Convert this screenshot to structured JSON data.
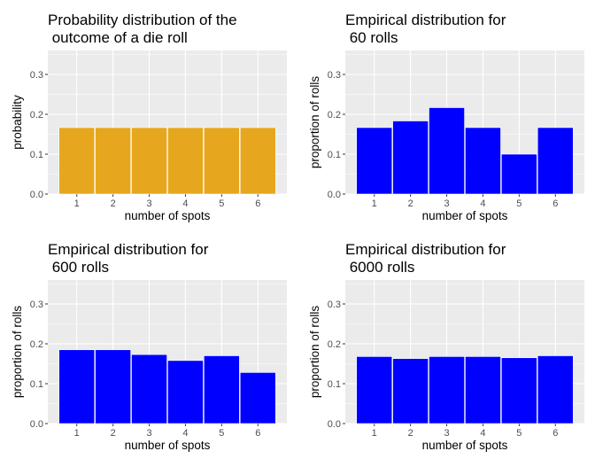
{
  "chart_data": [
    {
      "type": "bar",
      "title_lines": [
        "Probability distribution of the",
        " outcome of a die roll"
      ],
      "xlabel": "number of spots",
      "ylabel": "probability",
      "categories": [
        "1",
        "2",
        "3",
        "4",
        "5",
        "6"
      ],
      "values": [
        0.1667,
        0.1667,
        0.1667,
        0.1667,
        0.1667,
        0.1667
      ],
      "ylim": [
        0,
        0.36
      ],
      "yticks": [
        "0.0",
        "0.1",
        "0.2",
        "0.3"
      ],
      "bar_color": "#E6A71E",
      "panel_background": "#EBEBEB",
      "grid": true
    },
    {
      "type": "bar",
      "title_lines": [
        "Empirical distribution for",
        " 60 rolls"
      ],
      "xlabel": "number of spots",
      "ylabel": "proportion of rolls",
      "categories": [
        "1",
        "2",
        "3",
        "4",
        "5",
        "6"
      ],
      "values": [
        0.1667,
        0.1833,
        0.2167,
        0.1667,
        0.1,
        0.1667
      ],
      "ylim": [
        0,
        0.36
      ],
      "yticks": [
        "0.0",
        "0.1",
        "0.2",
        "0.3"
      ],
      "bar_color": "#0000FF",
      "panel_background": "#EBEBEB",
      "grid": true
    },
    {
      "type": "bar",
      "title_lines": [
        "Empirical distribution for",
        " 600 rolls"
      ],
      "xlabel": "number of spots",
      "ylabel": "proportion of rolls",
      "categories": [
        "1",
        "2",
        "3",
        "4",
        "5",
        "6"
      ],
      "values": [
        0.185,
        0.185,
        0.173,
        0.158,
        0.17,
        0.128
      ],
      "ylim": [
        0,
        0.36
      ],
      "yticks": [
        "0.0",
        "0.1",
        "0.2",
        "0.3"
      ],
      "bar_color": "#0000FF",
      "panel_background": "#EBEBEB",
      "grid": true
    },
    {
      "type": "bar",
      "title_lines": [
        "Empirical distribution for",
        " 6000 rolls"
      ],
      "xlabel": "number of spots",
      "ylabel": "proportion of rolls",
      "categories": [
        "1",
        "2",
        "3",
        "4",
        "5",
        "6"
      ],
      "values": [
        0.168,
        0.163,
        0.168,
        0.168,
        0.165,
        0.17
      ],
      "ylim": [
        0,
        0.36
      ],
      "yticks": [
        "0.0",
        "0.1",
        "0.2",
        "0.3"
      ],
      "bar_color": "#0000FF",
      "panel_background": "#EBEBEB",
      "grid": true
    }
  ]
}
